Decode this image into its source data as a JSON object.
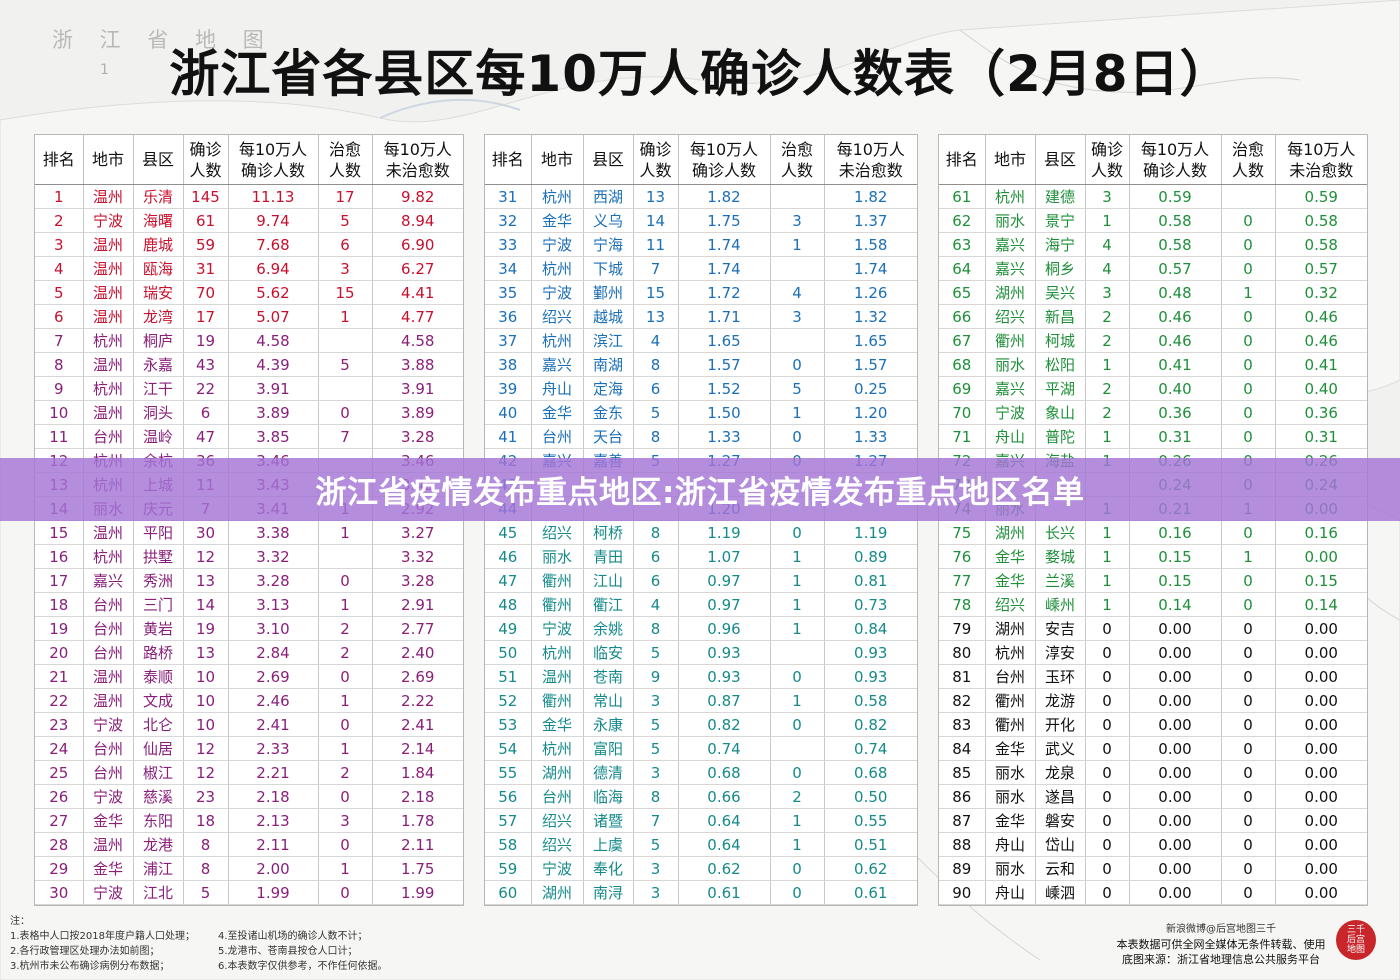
{
  "map": {
    "label": "浙 江 省 地 图",
    "scale": "1"
  },
  "title": "浙江省各县区每10万人确诊人数表（2月8日）",
  "headers": [
    "排名",
    "地市",
    "县区",
    "确诊\n人数",
    "每10万人\n确诊人数",
    "治愈\n人数",
    "每10万人\n未治愈数"
  ],
  "colors": {
    "red": "#c8102e",
    "purple": "#8a1f7a",
    "blue": "#1b6fb8",
    "teal": "#168a8a",
    "green": "#1f8f3a",
    "black": "#111111",
    "banner": "#a474d6"
  },
  "tables": [
    [
      [
        "1",
        "温州",
        "乐清",
        "145",
        "11.13",
        "17",
        "9.82"
      ],
      [
        "2",
        "宁波",
        "海曙",
        "61",
        "9.74",
        "5",
        "8.94"
      ],
      [
        "3",
        "温州",
        "鹿城",
        "59",
        "7.68",
        "6",
        "6.90"
      ],
      [
        "4",
        "温州",
        "瓯海",
        "31",
        "6.94",
        "3",
        "6.27"
      ],
      [
        "5",
        "温州",
        "瑞安",
        "70",
        "5.62",
        "15",
        "4.41"
      ],
      [
        "6",
        "温州",
        "龙湾",
        "17",
        "5.07",
        "1",
        "4.77"
      ],
      [
        "7",
        "杭州",
        "桐庐",
        "19",
        "4.58",
        "",
        "4.58"
      ],
      [
        "8",
        "温州",
        "永嘉",
        "43",
        "4.39",
        "5",
        "3.88"
      ],
      [
        "9",
        "杭州",
        "江干",
        "22",
        "3.91",
        "",
        "3.91"
      ],
      [
        "10",
        "温州",
        "洞头",
        "6",
        "3.89",
        "0",
        "3.89"
      ],
      [
        "11",
        "台州",
        "温岭",
        "47",
        "3.85",
        "7",
        "3.28"
      ],
      [
        "12",
        "杭州",
        "余杭",
        "36",
        "3.46",
        "",
        "3.46"
      ],
      [
        "13",
        "杭州",
        "上城",
        "11",
        "3.43",
        "",
        "3.43"
      ],
      [
        "14",
        "丽水",
        "庆元",
        "7",
        "3.41",
        "1",
        "2.92"
      ],
      [
        "15",
        "温州",
        "平阳",
        "30",
        "3.38",
        "1",
        "3.27"
      ],
      [
        "16",
        "杭州",
        "拱墅",
        "12",
        "3.32",
        "",
        "3.32"
      ],
      [
        "17",
        "嘉兴",
        "秀洲",
        "13",
        "3.28",
        "0",
        "3.28"
      ],
      [
        "18",
        "台州",
        "三门",
        "14",
        "3.13",
        "1",
        "2.91"
      ],
      [
        "19",
        "台州",
        "黄岩",
        "19",
        "3.10",
        "2",
        "2.77"
      ],
      [
        "20",
        "台州",
        "路桥",
        "13",
        "2.84",
        "2",
        "2.40"
      ],
      [
        "21",
        "温州",
        "泰顺",
        "10",
        "2.69",
        "0",
        "2.69"
      ],
      [
        "22",
        "温州",
        "文成",
        "10",
        "2.46",
        "1",
        "2.22"
      ],
      [
        "23",
        "宁波",
        "北仑",
        "10",
        "2.41",
        "0",
        "2.41"
      ],
      [
        "24",
        "台州",
        "仙居",
        "12",
        "2.33",
        "1",
        "2.14"
      ],
      [
        "25",
        "台州",
        "椒江",
        "12",
        "2.21",
        "2",
        "1.84"
      ],
      [
        "26",
        "宁波",
        "慈溪",
        "23",
        "2.18",
        "0",
        "2.18"
      ],
      [
        "27",
        "金华",
        "东阳",
        "18",
        "2.13",
        "3",
        "1.78"
      ],
      [
        "28",
        "温州",
        "龙港",
        "8",
        "2.11",
        "0",
        "2.11"
      ],
      [
        "29",
        "金华",
        "浦江",
        "8",
        "2.00",
        "1",
        "1.75"
      ],
      [
        "30",
        "宁波",
        "江北",
        "5",
        "1.99",
        "0",
        "1.99"
      ]
    ],
    [
      [
        "31",
        "杭州",
        "西湖",
        "13",
        "1.82",
        "",
        "1.82"
      ],
      [
        "32",
        "金华",
        "义乌",
        "14",
        "1.75",
        "3",
        "1.37"
      ],
      [
        "33",
        "宁波",
        "宁海",
        "11",
        "1.74",
        "1",
        "1.58"
      ],
      [
        "34",
        "杭州",
        "下城",
        "7",
        "1.74",
        "",
        "1.74"
      ],
      [
        "35",
        "宁波",
        "鄞州",
        "15",
        "1.72",
        "4",
        "1.26"
      ],
      [
        "36",
        "绍兴",
        "越城",
        "13",
        "1.71",
        "3",
        "1.32"
      ],
      [
        "37",
        "杭州",
        "滨江",
        "4",
        "1.65",
        "",
        "1.65"
      ],
      [
        "38",
        "嘉兴",
        "南湖",
        "8",
        "1.57",
        "0",
        "1.57"
      ],
      [
        "39",
        "舟山",
        "定海",
        "6",
        "1.52",
        "5",
        "0.25"
      ],
      [
        "40",
        "金华",
        "金东",
        "5",
        "1.50",
        "1",
        "1.20"
      ],
      [
        "41",
        "台州",
        "天台",
        "8",
        "1.33",
        "0",
        "1.33"
      ],
      [
        "42",
        "嘉兴",
        "嘉善",
        "5",
        "1.27",
        "0",
        "1.27"
      ],
      [
        "43",
        "",
        "",
        "",
        "",
        "",
        ""
      ],
      [
        "44",
        "",
        "",
        "",
        "1.20",
        "",
        ""
      ],
      [
        "45",
        "绍兴",
        "柯桥",
        "8",
        "1.19",
        "0",
        "1.19"
      ],
      [
        "46",
        "丽水",
        "青田",
        "6",
        "1.07",
        "1",
        "0.89"
      ],
      [
        "47",
        "衢州",
        "江山",
        "6",
        "0.97",
        "1",
        "0.81"
      ],
      [
        "48",
        "衢州",
        "衢江",
        "4",
        "0.97",
        "1",
        "0.73"
      ],
      [
        "49",
        "宁波",
        "余姚",
        "8",
        "0.96",
        "1",
        "0.84"
      ],
      [
        "50",
        "杭州",
        "临安",
        "5",
        "0.93",
        "",
        "0.93"
      ],
      [
        "51",
        "温州",
        "苍南",
        "9",
        "0.93",
        "0",
        "0.93"
      ],
      [
        "52",
        "衢州",
        "常山",
        "3",
        "0.87",
        "1",
        "0.58"
      ],
      [
        "53",
        "金华",
        "永康",
        "5",
        "0.82",
        "0",
        "0.82"
      ],
      [
        "54",
        "杭州",
        "富阳",
        "5",
        "0.74",
        "",
        "0.74"
      ],
      [
        "55",
        "湖州",
        "德清",
        "3",
        "0.68",
        "0",
        "0.68"
      ],
      [
        "56",
        "台州",
        "临海",
        "8",
        "0.66",
        "2",
        "0.50"
      ],
      [
        "57",
        "绍兴",
        "诸暨",
        "7",
        "0.64",
        "1",
        "0.55"
      ],
      [
        "58",
        "绍兴",
        "上虞",
        "5",
        "0.64",
        "1",
        "0.51"
      ],
      [
        "59",
        "宁波",
        "奉化",
        "3",
        "0.62",
        "0",
        "0.62"
      ],
      [
        "60",
        "湖州",
        "南浔",
        "3",
        "0.61",
        "0",
        "0.61"
      ]
    ],
    [
      [
        "61",
        "杭州",
        "建德",
        "3",
        "0.59",
        "",
        "0.59"
      ],
      [
        "62",
        "丽水",
        "景宁",
        "1",
        "0.58",
        "0",
        "0.58"
      ],
      [
        "63",
        "嘉兴",
        "海宁",
        "4",
        "0.58",
        "0",
        "0.58"
      ],
      [
        "64",
        "嘉兴",
        "桐乡",
        "4",
        "0.57",
        "0",
        "0.57"
      ],
      [
        "65",
        "湖州",
        "吴兴",
        "3",
        "0.48",
        "1",
        "0.32"
      ],
      [
        "66",
        "绍兴",
        "新昌",
        "2",
        "0.46",
        "0",
        "0.46"
      ],
      [
        "67",
        "衢州",
        "柯城",
        "2",
        "0.46",
        "0",
        "0.46"
      ],
      [
        "68",
        "丽水",
        "松阳",
        "1",
        "0.41",
        "0",
        "0.41"
      ],
      [
        "69",
        "嘉兴",
        "平湖",
        "2",
        "0.40",
        "0",
        "0.40"
      ],
      [
        "70",
        "宁波",
        "象山",
        "2",
        "0.36",
        "0",
        "0.36"
      ],
      [
        "71",
        "舟山",
        "普陀",
        "1",
        "0.31",
        "0",
        "0.31"
      ],
      [
        "72",
        "嘉兴",
        "海盐",
        "1",
        "0.26",
        "0",
        "0.26"
      ],
      [
        "73",
        "",
        "",
        "",
        "0.24",
        "0",
        "0.24"
      ],
      [
        "74",
        "丽水",
        "",
        "1",
        "0.21",
        "1",
        "0.00"
      ],
      [
        "75",
        "湖州",
        "长兴",
        "1",
        "0.16",
        "0",
        "0.16"
      ],
      [
        "76",
        "金华",
        "婺城",
        "1",
        "0.15",
        "1",
        "0.00"
      ],
      [
        "77",
        "金华",
        "兰溪",
        "1",
        "0.15",
        "0",
        "0.15"
      ],
      [
        "78",
        "绍兴",
        "嵊州",
        "1",
        "0.14",
        "0",
        "0.14"
      ],
      [
        "79",
        "湖州",
        "安吉",
        "0",
        "0.00",
        "0",
        "0.00"
      ],
      [
        "80",
        "杭州",
        "淳安",
        "0",
        "0.00",
        "0",
        "0.00"
      ],
      [
        "81",
        "台州",
        "玉环",
        "0",
        "0.00",
        "0",
        "0.00"
      ],
      [
        "82",
        "衢州",
        "龙游",
        "0",
        "0.00",
        "0",
        "0.00"
      ],
      [
        "83",
        "衢州",
        "开化",
        "0",
        "0.00",
        "0",
        "0.00"
      ],
      [
        "84",
        "金华",
        "武义",
        "0",
        "0.00",
        "0",
        "0.00"
      ],
      [
        "85",
        "丽水",
        "龙泉",
        "0",
        "0.00",
        "0",
        "0.00"
      ],
      [
        "86",
        "丽水",
        "遂昌",
        "0",
        "0.00",
        "0",
        "0.00"
      ],
      [
        "87",
        "金华",
        "磐安",
        "0",
        "0.00",
        "0",
        "0.00"
      ],
      [
        "88",
        "舟山",
        "岱山",
        "0",
        "0.00",
        "0",
        "0.00"
      ],
      [
        "89",
        "丽水",
        "云和",
        "0",
        "0.00",
        "0",
        "0.00"
      ],
      [
        "90",
        "舟山",
        "嵊泗",
        "0",
        "0.00",
        "0",
        "0.00"
      ]
    ]
  ],
  "banner": "浙江省疫情发布重点地区:浙江省疫情发布重点地区名单",
  "notes": {
    "col1": [
      "注：",
      "1.表格中人口按2018年度户籍人口处理；",
      "2.各行政管理区处理办法如前图；",
      "3.杭州市未公布确诊病例分布数据；"
    ],
    "col2": [
      "4.至投诸山机场的确诊人数不计；",
      "5.龙港市、苍南县按仓人口计；",
      "6.本表数字仅供参考，不作任何依据。"
    ]
  },
  "source": {
    "line1": "新浪微博@后宫地图三千",
    "line2": "本表数据可供全网全媒体无条件转载、使用",
    "line3": "底图来源：浙江省地理信息公共服务平台"
  },
  "seal": "三千后宫地图"
}
